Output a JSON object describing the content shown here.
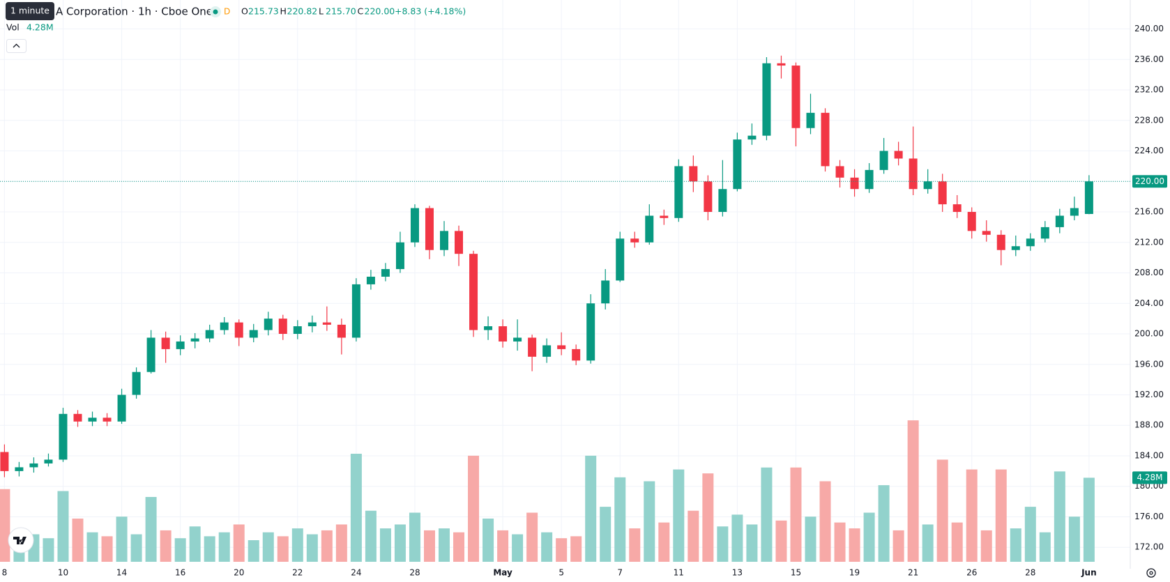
{
  "chart_data": {
    "type": "candlestick",
    "header": {
      "tooltip": "1 minute",
      "title": "A Corporation · 1h · Cboe One",
      "badge": "D",
      "ohlc": [
        {
          "key": "O",
          "value": "215.73"
        },
        {
          "key": "H",
          "value": "220.82"
        },
        {
          "key": "L",
          "value": "215.70"
        },
        {
          "key": "C",
          "value": "220.00"
        }
      ],
      "change": "+8.83 (+4.18%)",
      "volume_label": "Vol",
      "volume_value": "4.28M"
    },
    "last_price_label": "220.00",
    "last_volume_label": "4.28M",
    "categories": [
      "8",
      null,
      null,
      null,
      "10",
      null,
      null,
      null,
      "14",
      null,
      null,
      null,
      "16",
      null,
      null,
      null,
      "20",
      null,
      null,
      null,
      "22",
      null,
      null,
      null,
      "24",
      null,
      null,
      null,
      "28",
      null,
      null,
      null,
      null,
      null,
      "May",
      null,
      null,
      null,
      "5",
      null,
      null,
      null,
      "7",
      null,
      null,
      null,
      "11",
      null,
      null,
      null,
      "13",
      null,
      null,
      null,
      "15",
      null,
      null,
      null,
      "19",
      null,
      null,
      null,
      "21",
      null,
      null,
      null,
      "26",
      null,
      null,
      null,
      "28",
      null,
      null,
      null,
      "Jun"
    ],
    "open": [
      184.5,
      182,
      182.5,
      183,
      183.5,
      189.5,
      188.5,
      189,
      188.5,
      192,
      195,
      199.5,
      198,
      199,
      199.4,
      200.5,
      201.5,
      199.5,
      200.5,
      202,
      200,
      201,
      201.5,
      201.2,
      199.5,
      206.5,
      207.5,
      208.5,
      212,
      216.5,
      211,
      213.5,
      210.5,
      200.5,
      201,
      199,
      199.5,
      197,
      198.5,
      198,
      196.5,
      204,
      207,
      212.5,
      212,
      215.5,
      215.2,
      222,
      220,
      216,
      219,
      225.5,
      226,
      235.5,
      235.2,
      227,
      229,
      222,
      220.5,
      219,
      221.5,
      224,
      223,
      219,
      220,
      217,
      216,
      213.5,
      213,
      211,
      211.5,
      212.5,
      214,
      215.5,
      215.73
    ],
    "high": [
      185.5,
      183.2,
      183.8,
      184.3,
      190.3,
      190,
      189.8,
      189.6,
      192.8,
      195.6,
      200.5,
      200.3,
      199.8,
      200.1,
      201.2,
      202.2,
      201.9,
      201.3,
      202.9,
      202.5,
      201.8,
      202.4,
      203.6,
      202,
      207.3,
      208.4,
      209.3,
      213.4,
      217,
      216.8,
      214.8,
      214.2,
      210.9,
      202.3,
      201.9,
      201.9,
      199.9,
      199.4,
      200.2,
      198.6,
      205.2,
      208.5,
      213.4,
      213.4,
      217,
      216.3,
      222.9,
      223.4,
      220.8,
      222.8,
      226.4,
      227.6,
      236.3,
      236.5,
      235.6,
      231.5,
      229.6,
      222.8,
      221.6,
      222.4,
      225.7,
      225.2,
      227.2,
      221.6,
      221,
      218.2,
      216.6,
      214.9,
      213.6,
      212.9,
      213.2,
      214.8,
      216.4,
      218,
      220.82
    ],
    "low": [
      181.2,
      181.3,
      181.8,
      182.6,
      183.2,
      187.8,
      187.9,
      187.9,
      188.2,
      191.5,
      194.8,
      196.2,
      197.2,
      198.1,
      198.9,
      199.9,
      198.4,
      198.9,
      199.8,
      199.2,
      199.3,
      200.2,
      200.4,
      197.3,
      199,
      205.8,
      206.9,
      208,
      211.4,
      209.8,
      210.2,
      208.9,
      199.6,
      199.2,
      198.2,
      197.8,
      195.1,
      196.2,
      197.2,
      195.9,
      196.1,
      203.2,
      206.8,
      211.3,
      211.7,
      214.3,
      214.7,
      218.6,
      214.9,
      215.4,
      218.7,
      224.8,
      225.4,
      233.5,
      224.6,
      226.2,
      221.3,
      219.2,
      218,
      218.5,
      221,
      222.1,
      218.2,
      218.4,
      216,
      215.2,
      212.5,
      212.1,
      209,
      210.2,
      210.9,
      212,
      213.2,
      214.9,
      215.7
    ],
    "close": [
      182,
      182.5,
      183,
      183.5,
      189.5,
      188.5,
      189,
      188.5,
      192,
      195,
      199.5,
      198,
      199,
      199.4,
      200.5,
      201.5,
      199.5,
      200.5,
      202,
      200,
      201,
      201.5,
      201.2,
      199.5,
      206.5,
      207.5,
      208.5,
      212,
      216.5,
      211,
      213.5,
      210.5,
      200.5,
      201,
      199,
      199.5,
      197,
      198.5,
      198,
      196.5,
      204,
      207,
      212.5,
      212,
      215.5,
      215.2,
      222,
      220,
      216,
      219,
      225.5,
      226,
      235.5,
      235.2,
      227,
      229,
      222,
      220.5,
      219,
      221.5,
      224,
      223,
      219,
      220,
      217,
      216,
      213.5,
      213,
      211,
      211.5,
      212.5,
      214,
      215.5,
      216.5,
      220
    ],
    "volume": [
      3.7,
      1.6,
      1.4,
      1.2,
      3.6,
      2.2,
      1.5,
      1.3,
      2.3,
      1.4,
      3.3,
      1.6,
      1.2,
      1.8,
      1.3,
      1.5,
      1.9,
      1.1,
      1.5,
      1.3,
      1.7,
      1.4,
      1.6,
      1.9,
      5.5,
      2.6,
      1.7,
      1.9,
      2.5,
      1.6,
      1.7,
      1.5,
      5.4,
      2.2,
      1.6,
      1.4,
      2.5,
      1.5,
      1.2,
      1.3,
      5.4,
      2.8,
      4.3,
      1.7,
      4.1,
      2.0,
      4.7,
      2.6,
      4.5,
      1.8,
      2.4,
      1.9,
      4.8,
      2.1,
      4.8,
      2.3,
      4.1,
      2.0,
      1.7,
      2.5,
      3.9,
      1.6,
      7.2,
      1.9,
      5.2,
      2.0,
      4.7,
      1.6,
      4.7,
      1.7,
      2.8,
      1.5,
      4.6,
      2.3,
      4.28
    ],
    "ylim": [
      170.1,
      243.8
    ],
    "yticks": [
      {
        "value": 172,
        "label": "172.00"
      },
      {
        "value": 176,
        "label": "176.00"
      },
      {
        "value": 180,
        "label": "180.00"
      },
      {
        "value": 184,
        "label": "184.00"
      },
      {
        "value": 188,
        "label": "188.00"
      },
      {
        "value": 192,
        "label": "192.00"
      },
      {
        "value": 196,
        "label": "196.00"
      },
      {
        "value": 200,
        "label": "200.00"
      },
      {
        "value": 204,
        "label": "204.00"
      },
      {
        "value": 208,
        "label": "208.00"
      },
      {
        "value": 212,
        "label": "212.00"
      },
      {
        "value": 216,
        "label": "216.00"
      },
      {
        "value": 220,
        "label": "220.00"
      },
      {
        "value": 224,
        "label": "224.00"
      },
      {
        "value": 228,
        "label": "228.00"
      },
      {
        "value": 232,
        "label": "232.00"
      },
      {
        "value": 236,
        "label": "236.00"
      },
      {
        "value": 240,
        "label": "240.00"
      }
    ],
    "volume_ylim": [
      0,
      28.6
    ],
    "up_color": "#089981",
    "down_color": "#f23645",
    "volume_up_color": "#92d2cc",
    "volume_down_color": "#f7a9a7",
    "grid": true
  }
}
